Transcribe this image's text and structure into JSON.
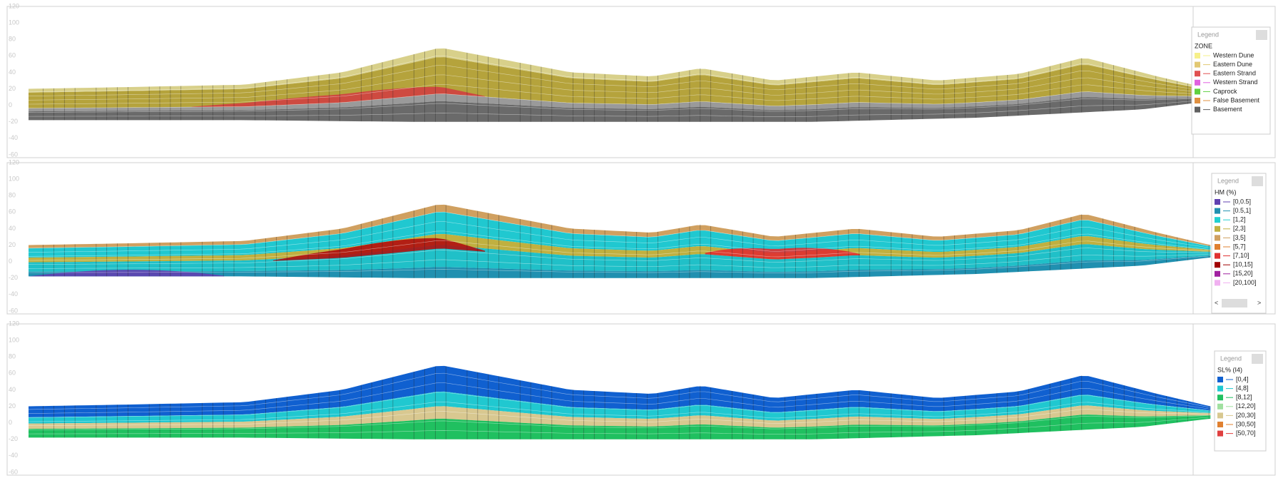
{
  "panels": [
    {
      "axis": {
        "ticks": [
          "120",
          "100",
          "80",
          "60",
          "40",
          "20",
          "0",
          "-20",
          "-40",
          "-60"
        ]
      },
      "legend": {
        "title": "Legend",
        "subtitle": "ZONE",
        "items": [
          {
            "label": "Western Dune",
            "color": "#f6f08a"
          },
          {
            "label": "Eastern Dune",
            "color": "#e2c872"
          },
          {
            "label": "Eastern Strand",
            "color": "#e05050"
          },
          {
            "label": "Western Strand",
            "color": "#e060e0"
          },
          {
            "label": "Caprock",
            "color": "#60d040"
          },
          {
            "label": "False Basement",
            "color": "#e09040"
          },
          {
            "label": "Basement",
            "color": "#606060"
          }
        ]
      }
    },
    {
      "axis": {
        "ticks": [
          "120",
          "100",
          "80",
          "60",
          "40",
          "20",
          "0",
          "-20",
          "-40",
          "-60"
        ]
      },
      "legend": {
        "title": "Legend",
        "subtitle": "HM (%)",
        "items": [
          {
            "label": "[0,0.5]",
            "color": "#6040b0"
          },
          {
            "label": "[0.5,1]",
            "color": "#2090b0"
          },
          {
            "label": "[1,2]",
            "color": "#20d0d0"
          },
          {
            "label": "[2,3]",
            "color": "#c0b040"
          },
          {
            "label": "[3,5]",
            "color": "#d0a060"
          },
          {
            "label": "[5,7]",
            "color": "#e08030"
          },
          {
            "label": "[7,10]",
            "color": "#e03030"
          },
          {
            "label": "[10,15]",
            "color": "#a00000"
          },
          {
            "label": "[15,20]",
            "color": "#a020a0"
          },
          {
            "label": "[20,100]",
            "color": "#f0b0f0"
          }
        ],
        "scroll": [
          "<",
          ">"
        ]
      }
    },
    {
      "axis": {
        "ticks": [
          "120",
          "100",
          "80",
          "60",
          "40",
          "20",
          "0",
          "-20",
          "-40",
          "-60"
        ]
      },
      "legend": {
        "title": "Legend",
        "subtitle": "SL% (I4)",
        "items": [
          {
            "label": "[0,4]",
            "color": "#1060d0"
          },
          {
            "label": "[4,8]",
            "color": "#20c8d0"
          },
          {
            "label": "[8,12]",
            "color": "#20c060"
          },
          {
            "label": "[12,20]",
            "color": "#a0e0a0"
          },
          {
            "label": "[20,30]",
            "color": "#d8c890"
          },
          {
            "label": "[30,50]",
            "color": "#e08030"
          },
          {
            "label": "[50,70]",
            "color": "#e04040"
          }
        ]
      }
    }
  ]
}
